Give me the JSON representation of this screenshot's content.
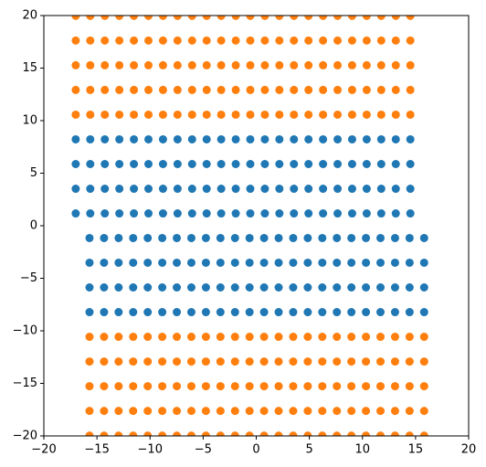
{
  "chart_data": {
    "type": "scatter",
    "xlim": [
      -20,
      20
    ],
    "ylim": [
      -20,
      20
    ],
    "xticks": [
      {
        "value": -20,
        "label": "−20"
      },
      {
        "value": -15,
        "label": "−15"
      },
      {
        "value": -10,
        "label": "−10"
      },
      {
        "value": -5,
        "label": "−5"
      },
      0,
      5,
      10,
      15,
      20
    ],
    "yticks": [
      {
        "value": -20,
        "label": "−20"
      },
      {
        "value": -15,
        "label": "−15"
      },
      {
        "value": -10,
        "label": "−10"
      },
      {
        "value": -5,
        "label": "−5"
      },
      0,
      5,
      10,
      15,
      20
    ],
    "series": [
      {
        "color": "#1f77b4",
        "x": [
          -17,
          -15.63,
          -14.26,
          -12.89,
          -11.52,
          -10.15,
          -8.78,
          -7.41,
          -6.04,
          -4.67,
          -3.3,
          -1.93,
          -0.56,
          0.81,
          2.18,
          3.55,
          4.92,
          6.29,
          7.66,
          9.03,
          10.4,
          11.77,
          13.14,
          14.51,
          -17,
          -15.63,
          -14.26,
          -12.89,
          -11.52,
          -10.15,
          -8.78,
          -7.41,
          -6.04,
          -4.67,
          -3.3,
          -1.93,
          -0.56,
          0.81,
          2.18,
          3.55,
          4.92,
          6.29,
          7.66,
          9.03,
          10.4,
          11.77,
          13.14,
          14.51,
          -17,
          -15.63,
          -14.26,
          -12.89,
          -11.52,
          -10.15,
          -8.78,
          -7.41,
          -6.04,
          -4.67,
          -3.3,
          -1.93,
          -0.56,
          0.81,
          2.18,
          3.55,
          4.92,
          6.29,
          7.66,
          9.03,
          10.4,
          11.77,
          13.14,
          14.51,
          -17,
          -15.63,
          -14.26,
          -12.89,
          -11.52,
          -10.15,
          -8.78,
          -7.41,
          -6.04,
          -4.67,
          -3.3,
          -1.93,
          -0.56,
          0.81,
          2.18,
          3.55,
          4.92,
          6.29,
          7.66,
          9.03,
          10.4,
          11.77,
          13.14,
          14.51,
          -15.7,
          -14.33,
          -12.96,
          -11.59,
          -10.22,
          -8.85,
          -7.48,
          -6.11,
          -4.74,
          -3.37,
          -2,
          -0.63,
          0.74,
          2.11,
          3.48,
          4.85,
          6.22,
          7.59,
          8.96,
          10.33,
          11.7,
          13.07,
          14.44,
          15.81,
          -15.7,
          -14.33,
          -12.96,
          -11.59,
          -10.22,
          -8.85,
          -7.48,
          -6.11,
          -4.74,
          -3.37,
          -2,
          -0.63,
          0.74,
          2.11,
          3.48,
          4.85,
          6.22,
          7.59,
          8.96,
          10.33,
          11.7,
          13.07,
          14.44,
          15.81,
          -15.7,
          -14.33,
          -12.96,
          -11.59,
          -10.22,
          -8.85,
          -7.48,
          -6.11,
          -4.74,
          -3.37,
          -2,
          -0.63,
          0.74,
          2.11,
          3.48,
          4.85,
          6.22,
          7.59,
          8.96,
          10.33,
          11.7,
          13.07,
          14.44,
          15.81,
          -15.7,
          -14.33,
          -12.96,
          -11.59,
          -10.22,
          -8.85,
          -7.48,
          -6.11,
          -4.74,
          -3.37,
          -2,
          -0.63,
          0.74,
          2.11,
          3.48,
          4.85,
          6.22,
          7.59,
          8.96,
          10.33,
          11.7,
          13.07,
          14.44,
          15.81
        ],
        "y": [
          8.22,
          8.22,
          8.22,
          8.22,
          8.22,
          8.22,
          8.22,
          8.22,
          8.22,
          8.22,
          8.22,
          8.22,
          8.22,
          8.22,
          8.22,
          8.22,
          8.22,
          8.22,
          8.22,
          8.22,
          8.22,
          8.22,
          8.22,
          8.22,
          5.87,
          5.87,
          5.87,
          5.87,
          5.87,
          5.87,
          5.87,
          5.87,
          5.87,
          5.87,
          5.87,
          5.87,
          5.87,
          5.87,
          5.87,
          5.87,
          5.87,
          5.87,
          5.87,
          5.87,
          5.87,
          5.87,
          5.87,
          5.87,
          3.52,
          3.52,
          3.52,
          3.52,
          3.52,
          3.52,
          3.52,
          3.52,
          3.52,
          3.52,
          3.52,
          3.52,
          3.52,
          3.52,
          3.52,
          3.52,
          3.52,
          3.52,
          3.52,
          3.52,
          3.52,
          3.52,
          3.52,
          3.52,
          1.17,
          1.17,
          1.17,
          1.17,
          1.17,
          1.17,
          1.17,
          1.17,
          1.17,
          1.17,
          1.17,
          1.17,
          1.17,
          1.17,
          1.17,
          1.17,
          1.17,
          1.17,
          1.17,
          1.17,
          1.17,
          1.17,
          1.17,
          1.17,
          -1.17,
          -1.17,
          -1.17,
          -1.17,
          -1.17,
          -1.17,
          -1.17,
          -1.17,
          -1.17,
          -1.17,
          -1.17,
          -1.17,
          -1.17,
          -1.17,
          -1.17,
          -1.17,
          -1.17,
          -1.17,
          -1.17,
          -1.17,
          -1.17,
          -1.17,
          -1.17,
          -1.17,
          -3.52,
          -3.52,
          -3.52,
          -3.52,
          -3.52,
          -3.52,
          -3.52,
          -3.52,
          -3.52,
          -3.52,
          -3.52,
          -3.52,
          -3.52,
          -3.52,
          -3.52,
          -3.52,
          -3.52,
          -3.52,
          -3.52,
          -3.52,
          -3.52,
          -3.52,
          -3.52,
          -3.52,
          -5.87,
          -5.87,
          -5.87,
          -5.87,
          -5.87,
          -5.87,
          -5.87,
          -5.87,
          -5.87,
          -5.87,
          -5.87,
          -5.87,
          -5.87,
          -5.87,
          -5.87,
          -5.87,
          -5.87,
          -5.87,
          -5.87,
          -5.87,
          -5.87,
          -5.87,
          -5.87,
          -5.87,
          -8.22,
          -8.22,
          -8.22,
          -8.22,
          -8.22,
          -8.22,
          -8.22,
          -8.22,
          -8.22,
          -8.22,
          -8.22,
          -8.22,
          -8.22,
          -8.22,
          -8.22,
          -8.22,
          -8.22,
          -8.22,
          -8.22,
          -8.22,
          -8.22,
          -8.22,
          -8.22,
          -8.22
        ]
      },
      {
        "color": "#ff7f0e",
        "x": [
          -17,
          -15.63,
          -14.26,
          -12.89,
          -11.52,
          -10.15,
          -8.78,
          -7.41,
          -6.04,
          -4.67,
          -3.3,
          -1.93,
          -0.56,
          0.81,
          2.18,
          3.55,
          4.92,
          6.29,
          7.66,
          9.03,
          10.4,
          11.77,
          13.14,
          14.51,
          -17,
          -15.63,
          -14.26,
          -12.89,
          -11.52,
          -10.15,
          -8.78,
          -7.41,
          -6.04,
          -4.67,
          -3.3,
          -1.93,
          -0.56,
          0.81,
          2.18,
          3.55,
          4.92,
          6.29,
          7.66,
          9.03,
          10.4,
          11.77,
          13.14,
          14.51,
          -17,
          -15.63,
          -14.26,
          -12.89,
          -11.52,
          -10.15,
          -8.78,
          -7.41,
          -6.04,
          -4.67,
          -3.3,
          -1.93,
          -0.56,
          0.81,
          2.18,
          3.55,
          4.92,
          6.29,
          7.66,
          9.03,
          10.4,
          11.77,
          13.14,
          14.51,
          -17,
          -15.63,
          -14.26,
          -12.89,
          -11.52,
          -10.15,
          -8.78,
          -7.41,
          -6.04,
          -4.67,
          -3.3,
          -1.93,
          -0.56,
          0.81,
          2.18,
          3.55,
          4.92,
          6.29,
          7.66,
          9.03,
          10.4,
          11.77,
          13.14,
          14.51,
          -17,
          -15.63,
          -14.26,
          -12.89,
          -11.52,
          -10.15,
          -8.78,
          -7.41,
          -6.04,
          -4.67,
          -3.3,
          -1.93,
          -0.56,
          0.81,
          2.18,
          3.55,
          4.92,
          6.29,
          7.66,
          9.03,
          10.4,
          11.77,
          13.14,
          14.51,
          -15.7,
          -14.33,
          -12.96,
          -11.59,
          -10.22,
          -8.85,
          -7.48,
          -6.11,
          -4.74,
          -3.37,
          -2,
          -0.63,
          0.74,
          2.11,
          3.48,
          4.85,
          6.22,
          7.59,
          8.96,
          10.33,
          11.7,
          13.07,
          14.44,
          15.81,
          -15.7,
          -14.33,
          -12.96,
          -11.59,
          -10.22,
          -8.85,
          -7.48,
          -6.11,
          -4.74,
          -3.37,
          -2,
          -0.63,
          0.74,
          2.11,
          3.48,
          4.85,
          6.22,
          7.59,
          8.96,
          10.33,
          11.7,
          13.07,
          14.44,
          15.81,
          -15.7,
          -14.33,
          -12.96,
          -11.59,
          -10.22,
          -8.85,
          -7.48,
          -6.11,
          -4.74,
          -3.37,
          -2,
          -0.63,
          0.74,
          2.11,
          3.48,
          4.85,
          6.22,
          7.59,
          8.96,
          10.33,
          11.7,
          13.07,
          14.44,
          15.81,
          -15.7,
          -14.33,
          -12.96,
          -11.59,
          -10.22,
          -8.85,
          -7.48,
          -6.11,
          -4.74,
          -3.37,
          -2,
          -0.63,
          0.74,
          2.11,
          3.48,
          4.85,
          6.22,
          7.59,
          8.96,
          10.33,
          11.7,
          13.07,
          14.44,
          15.81,
          -15.7,
          -14.33,
          -12.96,
          -11.59,
          -10.22,
          -8.85,
          -7.48,
          -6.11,
          -4.74,
          -3.37,
          -2,
          -0.63,
          0.74,
          2.11,
          3.48,
          4.85,
          6.22,
          7.59,
          8.96,
          10.33,
          11.7,
          13.07,
          14.44,
          15.81
        ],
        "y": [
          19.97,
          19.97,
          19.97,
          19.97,
          19.97,
          19.97,
          19.97,
          19.97,
          19.97,
          19.97,
          19.97,
          19.97,
          19.97,
          19.97,
          19.97,
          19.97,
          19.97,
          19.97,
          19.97,
          19.97,
          19.97,
          19.97,
          19.97,
          19.97,
          17.62,
          17.62,
          17.62,
          17.62,
          17.62,
          17.62,
          17.62,
          17.62,
          17.62,
          17.62,
          17.62,
          17.62,
          17.62,
          17.62,
          17.62,
          17.62,
          17.62,
          17.62,
          17.62,
          17.62,
          17.62,
          17.62,
          17.62,
          17.62,
          15.27,
          15.27,
          15.27,
          15.27,
          15.27,
          15.27,
          15.27,
          15.27,
          15.27,
          15.27,
          15.27,
          15.27,
          15.27,
          15.27,
          15.27,
          15.27,
          15.27,
          15.27,
          15.27,
          15.27,
          15.27,
          15.27,
          15.27,
          15.27,
          12.92,
          12.92,
          12.92,
          12.92,
          12.92,
          12.92,
          12.92,
          12.92,
          12.92,
          12.92,
          12.92,
          12.92,
          12.92,
          12.92,
          12.92,
          12.92,
          12.92,
          12.92,
          12.92,
          12.92,
          12.92,
          12.92,
          12.92,
          12.92,
          10.57,
          10.57,
          10.57,
          10.57,
          10.57,
          10.57,
          10.57,
          10.57,
          10.57,
          10.57,
          10.57,
          10.57,
          10.57,
          10.57,
          10.57,
          10.57,
          10.57,
          10.57,
          10.57,
          10.57,
          10.57,
          10.57,
          10.57,
          10.57,
          -10.57,
          -10.57,
          -10.57,
          -10.57,
          -10.57,
          -10.57,
          -10.57,
          -10.57,
          -10.57,
          -10.57,
          -10.57,
          -10.57,
          -10.57,
          -10.57,
          -10.57,
          -10.57,
          -10.57,
          -10.57,
          -10.57,
          -10.57,
          -10.57,
          -10.57,
          -10.57,
          -10.57,
          -12.92,
          -12.92,
          -12.92,
          -12.92,
          -12.92,
          -12.92,
          -12.92,
          -12.92,
          -12.92,
          -12.92,
          -12.92,
          -12.92,
          -12.92,
          -12.92,
          -12.92,
          -12.92,
          -12.92,
          -12.92,
          -12.92,
          -12.92,
          -12.92,
          -12.92,
          -12.92,
          -12.92,
          -15.27,
          -15.27,
          -15.27,
          -15.27,
          -15.27,
          -15.27,
          -15.27,
          -15.27,
          -15.27,
          -15.27,
          -15.27,
          -15.27,
          -15.27,
          -15.27,
          -15.27,
          -15.27,
          -15.27,
          -15.27,
          -15.27,
          -15.27,
          -15.27,
          -15.27,
          -15.27,
          -15.27,
          -17.62,
          -17.62,
          -17.62,
          -17.62,
          -17.62,
          -17.62,
          -17.62,
          -17.62,
          -17.62,
          -17.62,
          -17.62,
          -17.62,
          -17.62,
          -17.62,
          -17.62,
          -17.62,
          -17.62,
          -17.62,
          -17.62,
          -17.62,
          -17.62,
          -17.62,
          -17.62,
          -17.62,
          -19.97,
          -19.97,
          -19.97,
          -19.97,
          -19.97,
          -19.97,
          -19.97,
          -19.97,
          -19.97,
          -19.97,
          -19.97,
          -19.97,
          -19.97,
          -19.97,
          -19.97,
          -19.97,
          -19.97,
          -19.97,
          -19.97,
          -19.97,
          -19.97,
          -19.97,
          -19.97,
          -19.97
        ]
      }
    ]
  }
}
